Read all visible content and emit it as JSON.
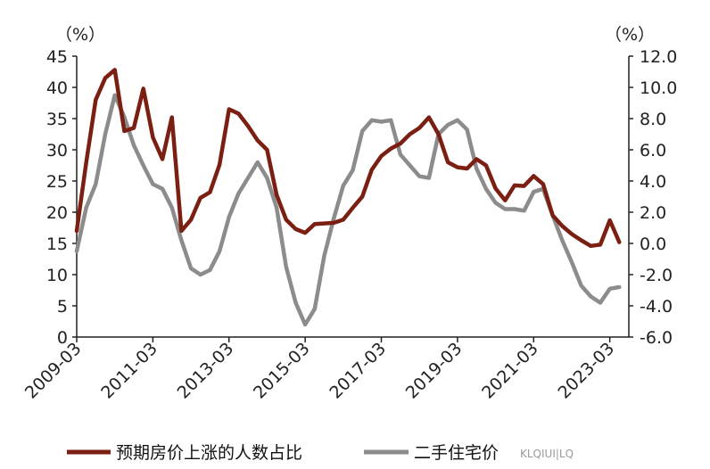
{
  "chart_data": {
    "type": "line",
    "left_axis": {
      "unit": "（%）",
      "ylim": [
        0,
        45
      ],
      "ticks": [
        "0",
        "5",
        "10",
        "15",
        "20",
        "25",
        "30",
        "35",
        "40",
        "45"
      ]
    },
    "right_axis": {
      "unit": "（%）",
      "ylim": [
        -6,
        12
      ],
      "ticks": [
        "-6.0",
        "-4.0",
        "-2.0",
        "0.0",
        "2.0",
        "4.0",
        "6.0",
        "8.0",
        "10.0",
        "12.0"
      ]
    },
    "x_ticks": [
      "2009-03",
      "2011-03",
      "2013-03",
      "2015-03",
      "2017-03",
      "2019-03",
      "2021-03",
      "2023-03"
    ],
    "x_range": [
      "2009-03",
      "2023-09"
    ],
    "grid": false,
    "legend_position": "bottom",
    "series": [
      {
        "name": "预期房价上涨的人数占比",
        "axis": "left",
        "color": "#7b1f12",
        "points": [
          [
            "2009-03",
            17.0
          ],
          [
            "2009-06",
            28.0
          ],
          [
            "2009-09",
            38.0
          ],
          [
            "2009-12",
            41.5
          ],
          [
            "2010-03",
            42.8
          ],
          [
            "2010-06",
            33.0
          ],
          [
            "2010-09",
            33.5
          ],
          [
            "2010-12",
            39.8
          ],
          [
            "2011-03",
            32.0
          ],
          [
            "2011-06",
            28.5
          ],
          [
            "2011-09",
            35.2
          ],
          [
            "2011-12",
            17.0
          ],
          [
            "2012-03",
            18.8
          ],
          [
            "2012-06",
            22.3
          ],
          [
            "2012-09",
            23.2
          ],
          [
            "2012-12",
            27.6
          ],
          [
            "2013-03",
            36.5
          ],
          [
            "2013-06",
            35.8
          ],
          [
            "2013-09",
            33.8
          ],
          [
            "2013-12",
            31.5
          ],
          [
            "2014-03",
            30.0
          ],
          [
            "2014-06",
            22.8
          ],
          [
            "2014-09",
            18.8
          ],
          [
            "2014-12",
            17.3
          ],
          [
            "2015-03",
            16.7
          ],
          [
            "2015-06",
            18.1
          ],
          [
            "2015-09",
            18.2
          ],
          [
            "2015-12",
            18.3
          ],
          [
            "2016-03",
            18.8
          ],
          [
            "2016-06",
            20.7
          ],
          [
            "2016-09",
            22.5
          ],
          [
            "2016-12",
            26.8
          ],
          [
            "2017-03",
            29.0
          ],
          [
            "2017-06",
            30.2
          ],
          [
            "2017-09",
            31.0
          ],
          [
            "2017-12",
            32.5
          ],
          [
            "2018-03",
            33.5
          ],
          [
            "2018-06",
            35.2
          ],
          [
            "2018-09",
            32.5
          ],
          [
            "2018-12",
            28.0
          ],
          [
            "2019-03",
            27.2
          ],
          [
            "2019-06",
            27.0
          ],
          [
            "2019-09",
            28.5
          ],
          [
            "2019-12",
            27.5
          ],
          [
            "2020-03",
            23.8
          ],
          [
            "2020-06",
            21.9
          ],
          [
            "2020-09",
            24.3
          ],
          [
            "2020-12",
            24.2
          ],
          [
            "2021-03",
            25.8
          ],
          [
            "2021-06",
            24.5
          ],
          [
            "2021-09",
            19.5
          ],
          [
            "2021-12",
            17.8
          ],
          [
            "2022-03",
            16.5
          ],
          [
            "2022-06",
            15.5
          ],
          [
            "2022-09",
            14.6
          ],
          [
            "2022-12",
            14.8
          ],
          [
            "2023-03",
            18.7
          ],
          [
            "2023-06",
            15.2
          ]
        ]
      },
      {
        "name": "二手住宅价",
        "axis": "right",
        "color": "#8c8c8c",
        "points": [
          [
            "2009-03",
            -0.5
          ],
          [
            "2009-06",
            2.3
          ],
          [
            "2009-09",
            3.8
          ],
          [
            "2009-12",
            7.0
          ],
          [
            "2010-03",
            9.5
          ],
          [
            "2010-06",
            8.1
          ],
          [
            "2010-09",
            6.3
          ],
          [
            "2010-12",
            5.0
          ],
          [
            "2011-03",
            3.8
          ],
          [
            "2011-06",
            3.5
          ],
          [
            "2011-09",
            2.3
          ],
          [
            "2011-12",
            0.2
          ],
          [
            "2012-03",
            -1.6
          ],
          [
            "2012-06",
            -2.0
          ],
          [
            "2012-09",
            -1.7
          ],
          [
            "2012-12",
            -0.5
          ],
          [
            "2013-03",
            1.7
          ],
          [
            "2013-06",
            3.2
          ],
          [
            "2013-09",
            4.2
          ],
          [
            "2013-12",
            5.2
          ],
          [
            "2014-03",
            4.2
          ],
          [
            "2014-06",
            2.3
          ],
          [
            "2014-09",
            -1.5
          ],
          [
            "2014-12",
            -3.8
          ],
          [
            "2015-03",
            -5.2
          ],
          [
            "2015-06",
            -4.2
          ],
          [
            "2015-09",
            -0.8
          ],
          [
            "2015-12",
            1.6
          ],
          [
            "2016-03",
            3.7
          ],
          [
            "2016-06",
            4.7
          ],
          [
            "2016-09",
            7.2
          ],
          [
            "2016-12",
            7.9
          ],
          [
            "2017-03",
            7.8
          ],
          [
            "2017-06",
            7.9
          ],
          [
            "2017-09",
            5.7
          ],
          [
            "2017-12",
            5.0
          ],
          [
            "2018-03",
            4.3
          ],
          [
            "2018-06",
            4.2
          ],
          [
            "2018-09",
            7.0
          ],
          [
            "2018-12",
            7.6
          ],
          [
            "2019-03",
            7.9
          ],
          [
            "2019-06",
            7.3
          ],
          [
            "2019-09",
            4.8
          ],
          [
            "2019-12",
            3.5
          ],
          [
            "2020-03",
            2.6
          ],
          [
            "2020-06",
            2.2
          ],
          [
            "2020-09",
            2.2
          ],
          [
            "2020-12",
            2.1
          ],
          [
            "2021-03",
            3.3
          ],
          [
            "2021-06",
            3.5
          ],
          [
            "2021-09",
            1.8
          ],
          [
            "2021-12",
            0.2
          ],
          [
            "2022-03",
            -1.2
          ],
          [
            "2022-06",
            -2.7
          ],
          [
            "2022-09",
            -3.4
          ],
          [
            "2022-12",
            -3.8
          ],
          [
            "2023-03",
            -2.9
          ],
          [
            "2023-06",
            -2.8
          ]
        ]
      }
    ]
  },
  "watermark": "KLQIUI|LQ"
}
